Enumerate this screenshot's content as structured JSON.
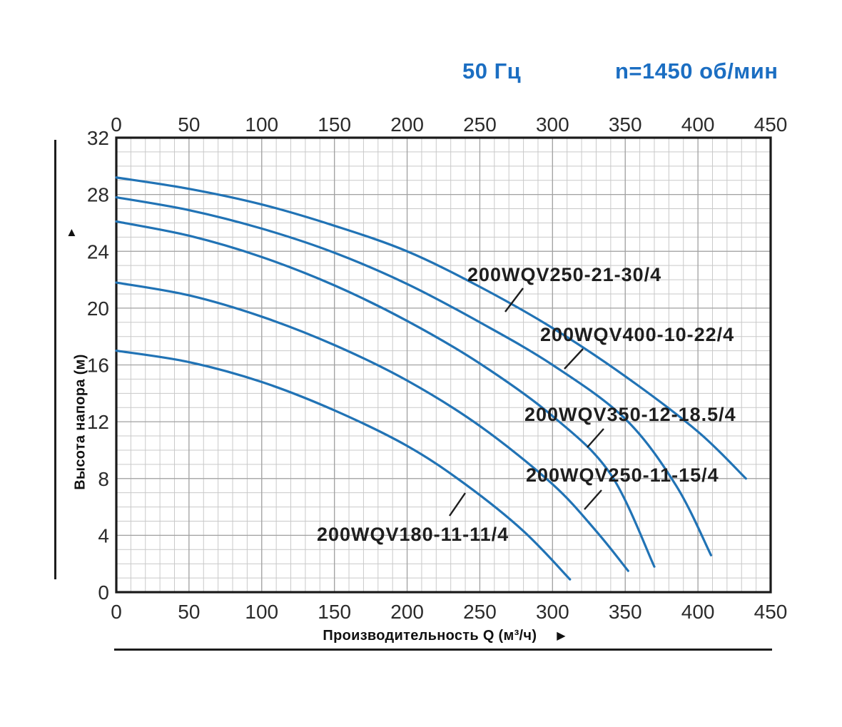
{
  "header": {
    "frequency": "50 Гц",
    "speed": "n=1450 об/мин",
    "accent_color": "#1b6ec2"
  },
  "y_axis": {
    "title": "Высота напора (м)",
    "arrow_icon": "▲",
    "ticks": [
      32,
      28,
      24,
      20,
      16,
      12,
      8,
      4,
      0
    ]
  },
  "x_axis": {
    "title": "Производительность Q (м³/ч)",
    "arrow_icon": "▶",
    "ticks": [
      0,
      50,
      100,
      150,
      200,
      250,
      300,
      350,
      400,
      450
    ],
    "ticks_shown_top_and_bottom": true
  },
  "chart_data": {
    "type": "line",
    "title": "",
    "xlabel": "Производительность Q (м³/ч)",
    "ylabel": "Высота напора (м)",
    "xlim": [
      0,
      450
    ],
    "ylim": [
      0,
      32
    ],
    "x_major_step": 50,
    "x_minor_step": 10,
    "y_major_step": 4,
    "y_minor_step": 1,
    "grid": true,
    "legend_position": "labels-on-curves",
    "curve_color": "#2173b5",
    "grid_minor_color": "#c9c9c9",
    "grid_major_color": "#a2a2a2",
    "border_color": "#1a1a1a",
    "label_color": "#1e1e1e",
    "series": [
      {
        "name": "200WQV250-21-30/4",
        "points": [
          [
            0,
            29.2
          ],
          [
            50,
            28.4
          ],
          [
            100,
            27.3
          ],
          [
            150,
            25.8
          ],
          [
            200,
            24.0
          ],
          [
            250,
            21.5
          ],
          [
            300,
            18.6
          ],
          [
            350,
            15.2
          ],
          [
            400,
            11.3
          ],
          [
            433,
            8.0
          ]
        ]
      },
      {
        "name": "200WQV400-10-22/4",
        "points": [
          [
            0,
            27.8
          ],
          [
            50,
            26.9
          ],
          [
            100,
            25.6
          ],
          [
            150,
            23.9
          ],
          [
            200,
            21.7
          ],
          [
            250,
            19.0
          ],
          [
            300,
            16.0
          ],
          [
            350,
            12.2
          ],
          [
            385,
            7.5
          ],
          [
            409,
            2.6
          ]
        ]
      },
      {
        "name": "200WQV350-12-18.5/4",
        "points": [
          [
            0,
            26.1
          ],
          [
            50,
            25.1
          ],
          [
            100,
            23.6
          ],
          [
            150,
            21.6
          ],
          [
            200,
            19.1
          ],
          [
            250,
            16.1
          ],
          [
            300,
            12.4
          ],
          [
            340,
            8.3
          ],
          [
            370,
            1.8
          ]
        ]
      },
      {
        "name": "200WQV250-11-15/4",
        "points": [
          [
            0,
            21.8
          ],
          [
            50,
            20.9
          ],
          [
            100,
            19.4
          ],
          [
            150,
            17.4
          ],
          [
            200,
            14.9
          ],
          [
            250,
            11.7
          ],
          [
            300,
            7.6
          ],
          [
            330,
            4.3
          ],
          [
            352,
            1.5
          ]
        ]
      },
      {
        "name": "200WQV180-11-11/4",
        "points": [
          [
            0,
            17.0
          ],
          [
            50,
            16.2
          ],
          [
            100,
            14.8
          ],
          [
            150,
            12.8
          ],
          [
            200,
            10.3
          ],
          [
            240,
            7.6
          ],
          [
            280,
            4.3
          ],
          [
            312,
            0.9
          ]
        ]
      }
    ]
  }
}
